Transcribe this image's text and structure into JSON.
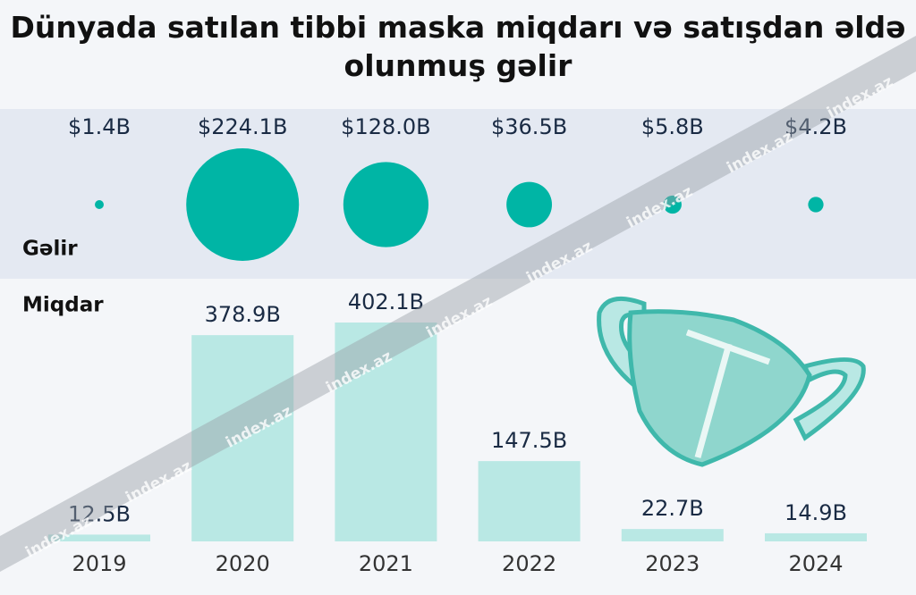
{
  "chart_data": [
    {
      "type": "bubble",
      "title": "Dünyada satılan tibbi maska miqdarı və satışdan əldə olunmuş gəlir",
      "label": "Gəlir",
      "values": [
        1.4,
        224.1,
        128.0,
        36.5,
        5.8,
        4.2
      ],
      "value_labels": [
        "$1.4B",
        "$224.1B",
        "$128.0B",
        "$36.5B",
        "$5.8B",
        "$4.2B"
      ],
      "color": "#00b5a5",
      "watermark": "index.az"
    },
    {
      "type": "bar",
      "label": "Miqdar",
      "categories": [
        "2019",
        "2020",
        "2021",
        "2022",
        "2023",
        "2024"
      ],
      "values": [
        12.5,
        378.9,
        402.1,
        147.5,
        22.7,
        14.9
      ],
      "value_labels": [
        "12.5B",
        "378.9B",
        "402.1B",
        "147.5B",
        "22.7B",
        "14.9B"
      ],
      "color": "#b9e8e4"
    }
  ]
}
